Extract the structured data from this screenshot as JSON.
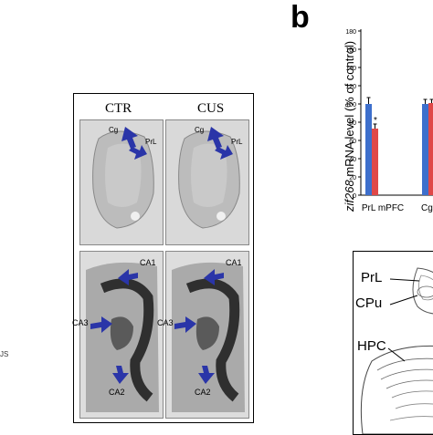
{
  "panel": {
    "letter": "b",
    "side_fragment": "JS"
  },
  "autoradiograph": {
    "columns": [
      "CTR",
      "CUS"
    ],
    "top_labels": [
      "Cg",
      "PrL",
      "Cg",
      "PrL"
    ],
    "bottom_labels": [
      "CA1",
      "CA3",
      "CA2",
      "CA1",
      "CA3",
      "CA2"
    ],
    "arrow_color": "#2a35a8"
  },
  "chart_data": {
    "type": "bar",
    "ylabel": "zif268 mRNA level (% of control)",
    "ylabel_italic": "zif268",
    "ylabel_rest": " mRNA level (% of control)",
    "yticks": [
      "0",
      "20",
      "40",
      "60",
      "80",
      "100",
      "120",
      "140",
      "160",
      "180"
    ],
    "ylim": [
      0,
      180
    ],
    "categories": [
      "PrL mPFC",
      "Cg"
    ],
    "series": [
      {
        "color": "#3d6fcc",
        "values": [
          100,
          100
        ],
        "errors": [
          7,
          5
        ]
      },
      {
        "color": "#e04848",
        "values": [
          73,
          101
        ],
        "errors": [
          5,
          4
        ]
      }
    ],
    "annotation": "*"
  },
  "atlas": {
    "labels": [
      "PrL",
      "CPu",
      "HPC"
    ]
  }
}
